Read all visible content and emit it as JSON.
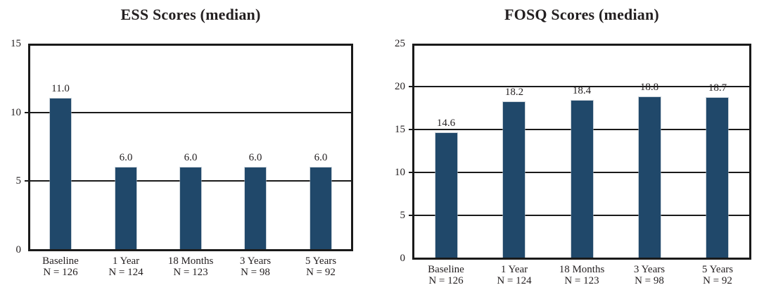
{
  "figure": {
    "background_color": "#ffffff",
    "text_color": "#231f20",
    "axis_color": "#1a1a1a",
    "bar_color": "#20486a"
  },
  "chart_data": [
    {
      "type": "bar",
      "title": "ESS Scores (median)",
      "categories": [
        "Baseline",
        "1 Year",
        "18 Months",
        "3 Years",
        "5 Years"
      ],
      "category_sublabels": [
        "N = 126",
        "N = 124",
        "N = 123",
        "N = 98",
        "N = 92"
      ],
      "values": [
        11.0,
        6.0,
        6.0,
        6.0,
        6.0
      ],
      "value_labels": [
        "11.0",
        "6.0",
        "6.0",
        "6.0",
        "6.0"
      ],
      "xlabel": "",
      "ylabel": "",
      "ylim": [
        0,
        15
      ],
      "yticks": [
        0,
        5,
        10,
        15
      ],
      "grid": "horizontal",
      "legend": "none",
      "bar_color": "#20486a"
    },
    {
      "type": "bar",
      "title": "FOSQ Scores (median)",
      "categories": [
        "Baseline",
        "1 Year",
        "18 Months",
        "3 Years",
        "5 Years"
      ],
      "category_sublabels": [
        "N = 126",
        "N = 124",
        "N = 123",
        "N = 98",
        "N = 92"
      ],
      "values": [
        14.6,
        18.2,
        18.4,
        18.8,
        18.7
      ],
      "value_labels": [
        "14.6",
        "18.2",
        "18.4",
        "18.8",
        "18.7"
      ],
      "xlabel": "",
      "ylabel": "",
      "ylim": [
        0,
        25
      ],
      "yticks": [
        0,
        5,
        10,
        15,
        20,
        25
      ],
      "grid": "horizontal",
      "legend": "none",
      "bar_color": "#20486a"
    }
  ]
}
